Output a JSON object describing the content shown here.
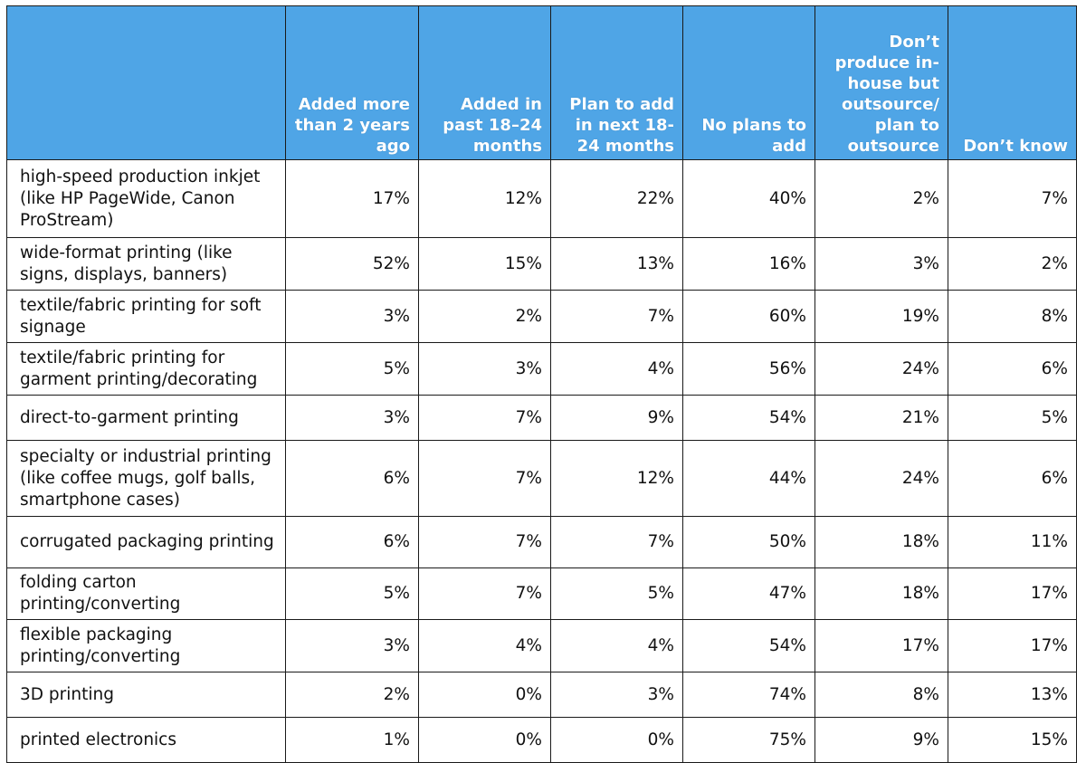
{
  "chart_data": {
    "type": "table",
    "columns": [
      "",
      "Added more than 2 years ago",
      "Added in past 18–24 months",
      "Plan to add in next 18-24 months",
      "No plans to add",
      "Don’t produce in-house but outsource/ plan to outsource",
      "Don’t know"
    ],
    "rows": [
      {
        "label": "high-speed production inkjet (like HP PageWide, Canon ProStream)",
        "values": [
          "17%",
          "12%",
          "22%",
          "40%",
          "2%",
          "7%"
        ]
      },
      {
        "label": "wide-format printing (like signs, displays, banners)",
        "values": [
          "52%",
          "15%",
          "13%",
          "16%",
          "3%",
          "2%"
        ]
      },
      {
        "label": "textile/fabric printing for soft signage",
        "values": [
          "3%",
          "2%",
          "7%",
          "60%",
          "19%",
          "8%"
        ]
      },
      {
        "label": "textile/fabric printing for garment printing/decorating",
        "values": [
          "5%",
          "3%",
          "4%",
          "56%",
          "24%",
          "6%"
        ]
      },
      {
        "label": "direct-to-garment printing",
        "values": [
          "3%",
          "7%",
          "9%",
          "54%",
          "21%",
          "5%"
        ]
      },
      {
        "label": "specialty or industrial printing (like coffee mugs, golf balls, smartphone cases)",
        "values": [
          "6%",
          "7%",
          "12%",
          "44%",
          "24%",
          "6%"
        ]
      },
      {
        "label": "corrugated packaging printing",
        "values": [
          "6%",
          "7%",
          "7%",
          "50%",
          "18%",
          "11%"
        ]
      },
      {
        "label": "folding carton printing/converting",
        "values": [
          "5%",
          "7%",
          "5%",
          "47%",
          "18%",
          "17%"
        ]
      },
      {
        "label": "flexible packaging printing/converting",
        "values": [
          "3%",
          "4%",
          "4%",
          "54%",
          "17%",
          "17%"
        ]
      },
      {
        "label": "3D printing",
        "values": [
          "2%",
          "0%",
          "3%",
          "74%",
          "8%",
          "13%"
        ]
      },
      {
        "label": "printed electronics",
        "values": [
          "1%",
          "0%",
          "0%",
          "75%",
          "9%",
          "15%"
        ]
      }
    ]
  },
  "colors": {
    "header_bg": "#4fa5e6",
    "header_text": "#ffffff",
    "border": "#1a1a1a"
  }
}
